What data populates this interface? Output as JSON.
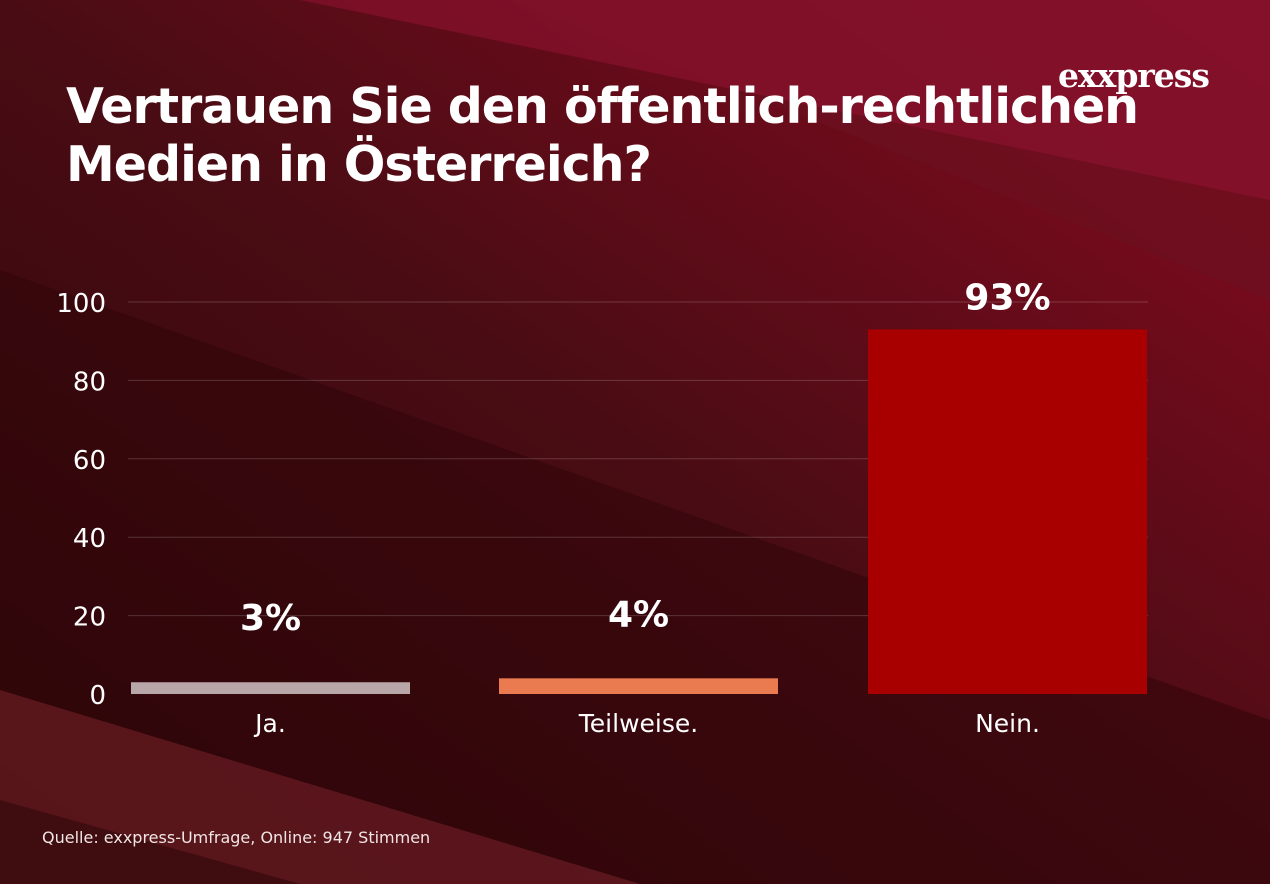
{
  "title": "Vertrauen Sie den öffentlich-rechtlichen Medien in Österreich?",
  "title_lines": [
    "Vertrauen Sie den öffentlich-rechtlichen",
    "Medien in Österreich?"
  ],
  "logo": "exxpress",
  "source": "Quelle:  exxpress-Umfrage, Online: 947 Stimmen",
  "colors": {
    "background": "#3a0a0f",
    "accent": "#a80000"
  },
  "chart_data": {
    "type": "bar",
    "categories": [
      "Ja.",
      "Teilweise.",
      "Nein."
    ],
    "values": [
      3,
      4,
      93
    ],
    "data_labels": [
      "3%",
      "4%",
      "93%"
    ],
    "bar_colors": [
      "#b9a6a8",
      "#ea7a50",
      "#a80000"
    ],
    "yticks": [
      0,
      20,
      40,
      60,
      80,
      100
    ],
    "ylim": [
      0,
      100
    ],
    "grid": true,
    "title": "Vertrauen Sie den öffentlich-rechtlichen Medien in Österreich?"
  }
}
